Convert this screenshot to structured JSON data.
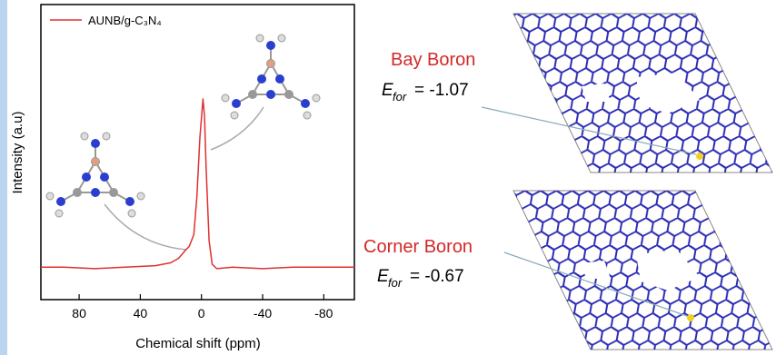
{
  "chart_data": {
    "type": "line",
    "x_label": "Chemical shift (ppm)",
    "y_label": "Intensity (a.u)",
    "x": [
      105,
      90,
      70,
      50,
      30,
      20,
      15,
      10,
      8,
      5,
      3,
      1,
      -1,
      -2,
      -3,
      -5,
      -7,
      -10,
      -20,
      -40,
      -60,
      -80,
      -100
    ],
    "series": [
      {
        "name": "AUNB/g-C₃N₄",
        "color": "#e03030",
        "values": [
          11,
          11,
          10.5,
          11,
          11.5,
          12.5,
          14,
          17,
          18,
          22,
          35,
          55,
          68,
          62,
          45,
          20,
          12,
          10.5,
          11,
          10.5,
          11,
          11,
          11
        ]
      }
    ],
    "xlim": [
      105,
      -100
    ],
    "xticks": [
      80,
      40,
      0,
      -40,
      -80
    ],
    "ylim": [
      0,
      100
    ],
    "legend": "top-left",
    "annotations": [
      {
        "text": "Bay Boron",
        "symbol": "E",
        "subscript": "for",
        "energy": "= -1.07"
      },
      {
        "text": "Corner Boron",
        "symbol": "E",
        "subscript": "for",
        "energy": "= -0.67"
      }
    ]
  }
}
